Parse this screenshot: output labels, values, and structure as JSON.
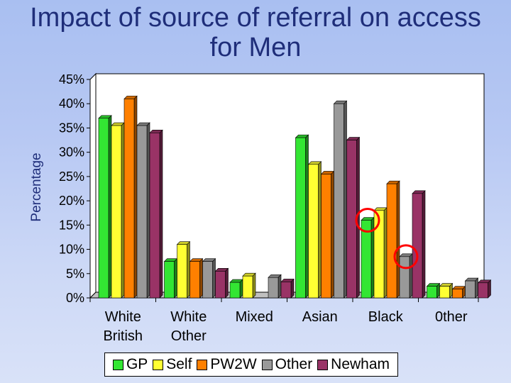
{
  "title_line1": "Impact of source of referral on access",
  "title_line2": "for Men",
  "chart_data": {
    "type": "bar",
    "title": "Impact of source of referral on access for Men",
    "ylabel": "Percentage",
    "xlabel": "",
    "ylim": [
      0,
      45
    ],
    "ytick_values": [
      0,
      5,
      10,
      15,
      20,
      25,
      30,
      35,
      40,
      45
    ],
    "ytick_labels": [
      "0%",
      "5%",
      "10%",
      "15%",
      "20%",
      "25%",
      "30%",
      "35%",
      "40%",
      "45%"
    ],
    "categories": [
      "White British",
      "White Other",
      "Mixed",
      "Asian",
      "Black",
      "0ther"
    ],
    "series": [
      {
        "name": "GP",
        "color": "#33e633",
        "values": [
          37,
          7.5,
          3.2,
          33,
          16,
          2.4
        ]
      },
      {
        "name": "Self",
        "color": "#ffff33",
        "values": [
          35.5,
          11,
          4.5,
          27.5,
          18,
          2.4
        ]
      },
      {
        "name": "PW2W",
        "color": "#ff8000",
        "values": [
          41,
          7.5,
          0,
          25.5,
          23.5,
          1.8
        ]
      },
      {
        "name": "Other",
        "color": "#999999",
        "values": [
          35.5,
          7.5,
          4.2,
          40,
          8.5,
          3.5
        ]
      },
      {
        "name": "Newham",
        "color": "#993366",
        "values": [
          34,
          5.5,
          3.3,
          32.5,
          21.5,
          3.1
        ]
      }
    ],
    "grid": false,
    "legend_position": "bottom",
    "annotations": [
      "red circle around GP bar in Black",
      "red circle around Other bar in Black"
    ]
  }
}
